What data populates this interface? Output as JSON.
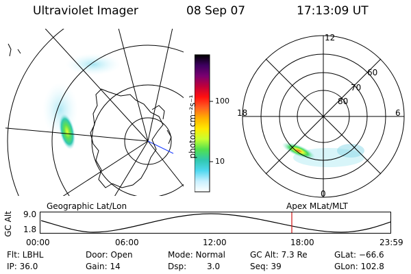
{
  "header": {
    "instrument": "Ultraviolet Imager",
    "date": "08 Sep 07",
    "time": "17:13:09 UT"
  },
  "geo_panel": {
    "label": "Geographic Lat/Lon"
  },
  "polar_panel": {
    "label": "Apex MLat/MLT",
    "mlt_labels": [
      "12",
      "18",
      "6",
      "0"
    ],
    "lat_labels": [
      "60",
      "70",
      "80"
    ]
  },
  "colorbar": {
    "unit_label": "photon cm⁻²s⁻¹",
    "ticks": [
      "100",
      "10"
    ],
    "colors": [
      "#000000",
      "#3d0060",
      "#7a0070",
      "#c0003a",
      "#ff1010",
      "#ff6020",
      "#ffb000",
      "#ffe800",
      "#c8ff30",
      "#50e050",
      "#30c8b0",
      "#50d8f0",
      "#c8f0ff",
      "#ffffff"
    ]
  },
  "timeline": {
    "axis_label": "GC Alt",
    "y_ticks": [
      "9.0",
      "1.8"
    ],
    "x_ticks": [
      "00:00",
      "06:00",
      "12:00",
      "18:00",
      "23:59"
    ],
    "marker_time": "17:13",
    "marker_color": "#d01010"
  },
  "info": {
    "filter": "Flt: LBHL",
    "ip": "IP: 36.0",
    "door": "Door: Open",
    "gain": "Gain: 14",
    "mode": "Mode: Normal",
    "dsp_label": "Dsp:",
    "dsp_value": "3.0",
    "gc_alt": "GC Alt: 7.3 Re",
    "seq": "Seq: 39",
    "glat": "GLat: −66.6",
    "glon": "GLon: 102.8"
  }
}
